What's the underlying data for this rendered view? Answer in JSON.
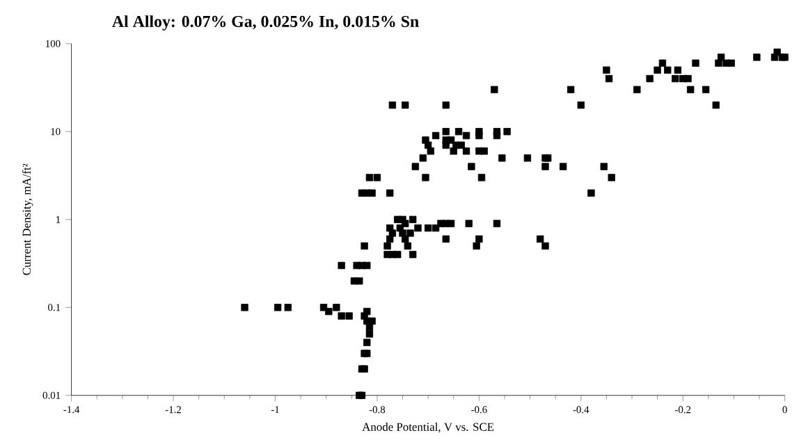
{
  "chart_data": {
    "type": "scatter",
    "title": "Al Alloy: 0.07% Ga, 0.025% In, 0.015% Sn",
    "xlabel": "Anode Potential, V vs. SCE",
    "ylabel": "Current Density, mA/ft²",
    "color": "#000000",
    "marker": "square",
    "log": "y",
    "x": [
      -1.06,
      -0.995,
      -0.975,
      -0.905,
      -0.895,
      -0.88,
      -0.87,
      -0.855,
      -0.87,
      -0.845,
      -0.835,
      -0.84,
      -0.83,
      -0.82,
      -0.825,
      -0.83,
      -0.82,
      -0.81,
      -0.815,
      -0.8,
      -0.825,
      -0.82,
      -0.82,
      -0.81,
      -0.815,
      -0.815,
      -0.82,
      -0.825,
      -0.82,
      -0.83,
      -0.825,
      -0.835,
      -0.83,
      -0.775,
      -0.775,
      -0.77,
      -0.775,
      -0.78,
      -0.78,
      -0.77,
      -0.76,
      -0.76,
      -0.75,
      -0.755,
      -0.745,
      -0.75,
      -0.745,
      -0.74,
      -0.735,
      -0.73,
      -0.73,
      -0.72,
      -0.7,
      -0.685,
      -0.675,
      -0.665,
      -0.665,
      -0.655,
      -0.62,
      -0.605,
      -0.6,
      -0.565,
      -0.48,
      -0.47,
      -0.725,
      -0.71,
      -0.705,
      -0.705,
      -0.7,
      -0.695,
      -0.685,
      -0.665,
      -0.665,
      -0.665,
      -0.655,
      -0.65,
      -0.645,
      -0.64,
      -0.635,
      -0.625,
      -0.625,
      -0.615,
      -0.6,
      -0.6,
      -0.6,
      -0.59,
      -0.595,
      -0.565,
      -0.565,
      -0.555,
      -0.545,
      -0.505,
      -0.47,
      -0.465,
      -0.47,
      -0.435,
      -0.38,
      -0.355,
      -0.34,
      -0.77,
      -0.745,
      -0.665,
      -0.57,
      -0.42,
      -0.4,
      -0.35,
      -0.345,
      -0.29,
      -0.265,
      -0.25,
      -0.24,
      -0.23,
      -0.215,
      -0.21,
      -0.2,
      -0.19,
      -0.185,
      -0.175,
      -0.155,
      -0.135,
      -0.13,
      -0.125,
      -0.115,
      -0.105,
      -0.055,
      -0.02,
      -0.015,
      -0.005,
      0
    ],
    "values": [
      0.1,
      0.1,
      0.1,
      0.1,
      0.09,
      0.1,
      0.08,
      0.08,
      0.3,
      0.2,
      0.2,
      0.3,
      0.3,
      0.3,
      0.5,
      2,
      2,
      2,
      3,
      3,
      0.08,
      0.09,
      0.07,
      0.07,
      0.06,
      0.05,
      0.04,
      0.03,
      0.03,
      0.02,
      0.02,
      0.01,
      0.01,
      2,
      0.8,
      0.7,
      0.6,
      0.5,
      0.4,
      0.4,
      0.4,
      1,
      1,
      0.8,
      0.9,
      0.7,
      0.6,
      0.5,
      0.7,
      1,
      0.4,
      0.8,
      0.8,
      0.8,
      0.9,
      0.9,
      0.6,
      0.9,
      0.9,
      0.5,
      0.6,
      0.9,
      0.6,
      0.5,
      4,
      5,
      3,
      8,
      7,
      6,
      9,
      10,
      8,
      7,
      8,
      6,
      7,
      10,
      7,
      9,
      6,
      4,
      10,
      9,
      6,
      6,
      3,
      10,
      9,
      5,
      10,
      5,
      5,
      5,
      4,
      4,
      2,
      4,
      3,
      20,
      20,
      20,
      30,
      30,
      20,
      50,
      40,
      30,
      40,
      50,
      60,
      50,
      40,
      50,
      40,
      40,
      30,
      60,
      30,
      20,
      60,
      70,
      60,
      60,
      70,
      70,
      80,
      70,
      70
    ],
    "xlim": [
      -1.4,
      0
    ],
    "ylim": [
      0.01,
      100
    ],
    "xticks": [
      -1.4,
      -1.2,
      -1,
      -0.8,
      -0.6,
      -0.4,
      -0.2,
      0
    ],
    "yticks": [
      0.01,
      0.1,
      1,
      10,
      100
    ]
  }
}
